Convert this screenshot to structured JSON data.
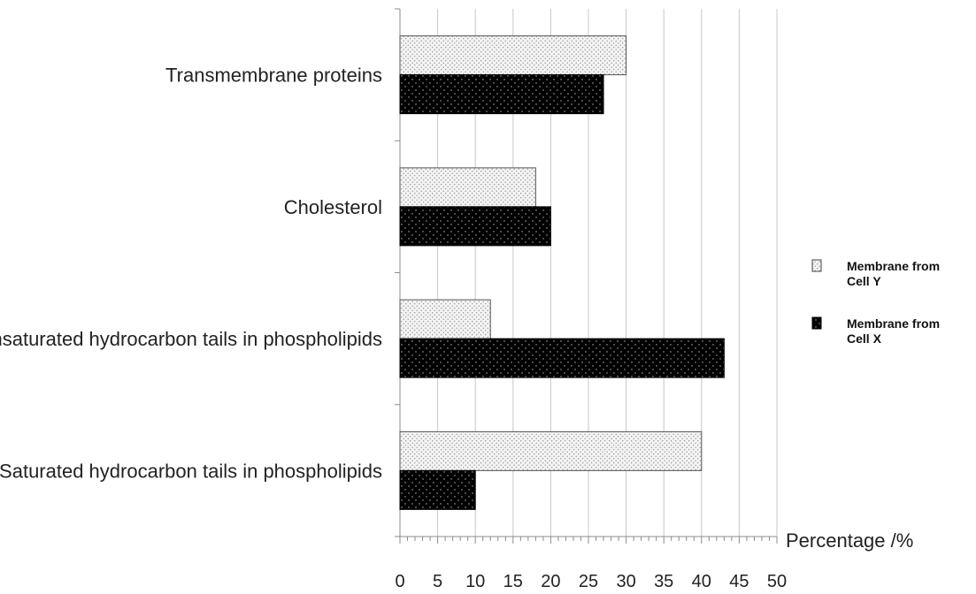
{
  "chart_data": {
    "type": "bar",
    "orientation": "horizontal",
    "categories": [
      "Transmembrane proteins",
      "Cholesterol",
      "Unsaturated hydrocarbon tails in phospholipids",
      "Saturated hydrocarbon tails in phospholipids"
    ],
    "series": [
      {
        "name": "Membrane from Cell Y",
        "values": [
          30,
          18,
          12,
          40
        ]
      },
      {
        "name": "Membrane from Cell X",
        "values": [
          27,
          20,
          43,
          10
        ]
      }
    ],
    "xlabel": "Percentage /%",
    "xlim": [
      0,
      50
    ],
    "xticks": [
      0,
      5,
      10,
      15,
      20,
      25,
      30,
      35,
      40,
      45,
      50
    ],
    "grid": "vertical gridlines",
    "legend": {
      "position": "right",
      "entries": [
        {
          "line1": "Membrane from",
          "line2": "Cell Y"
        },
        {
          "line1": "Membrane from",
          "line2": "Cell X"
        }
      ]
    },
    "colors": {
      "cell_y_fill": "#f2f2f2",
      "cell_x_fill": "#000000",
      "grid": "#c8c8c8",
      "axis": "#8c8c8c"
    }
  }
}
